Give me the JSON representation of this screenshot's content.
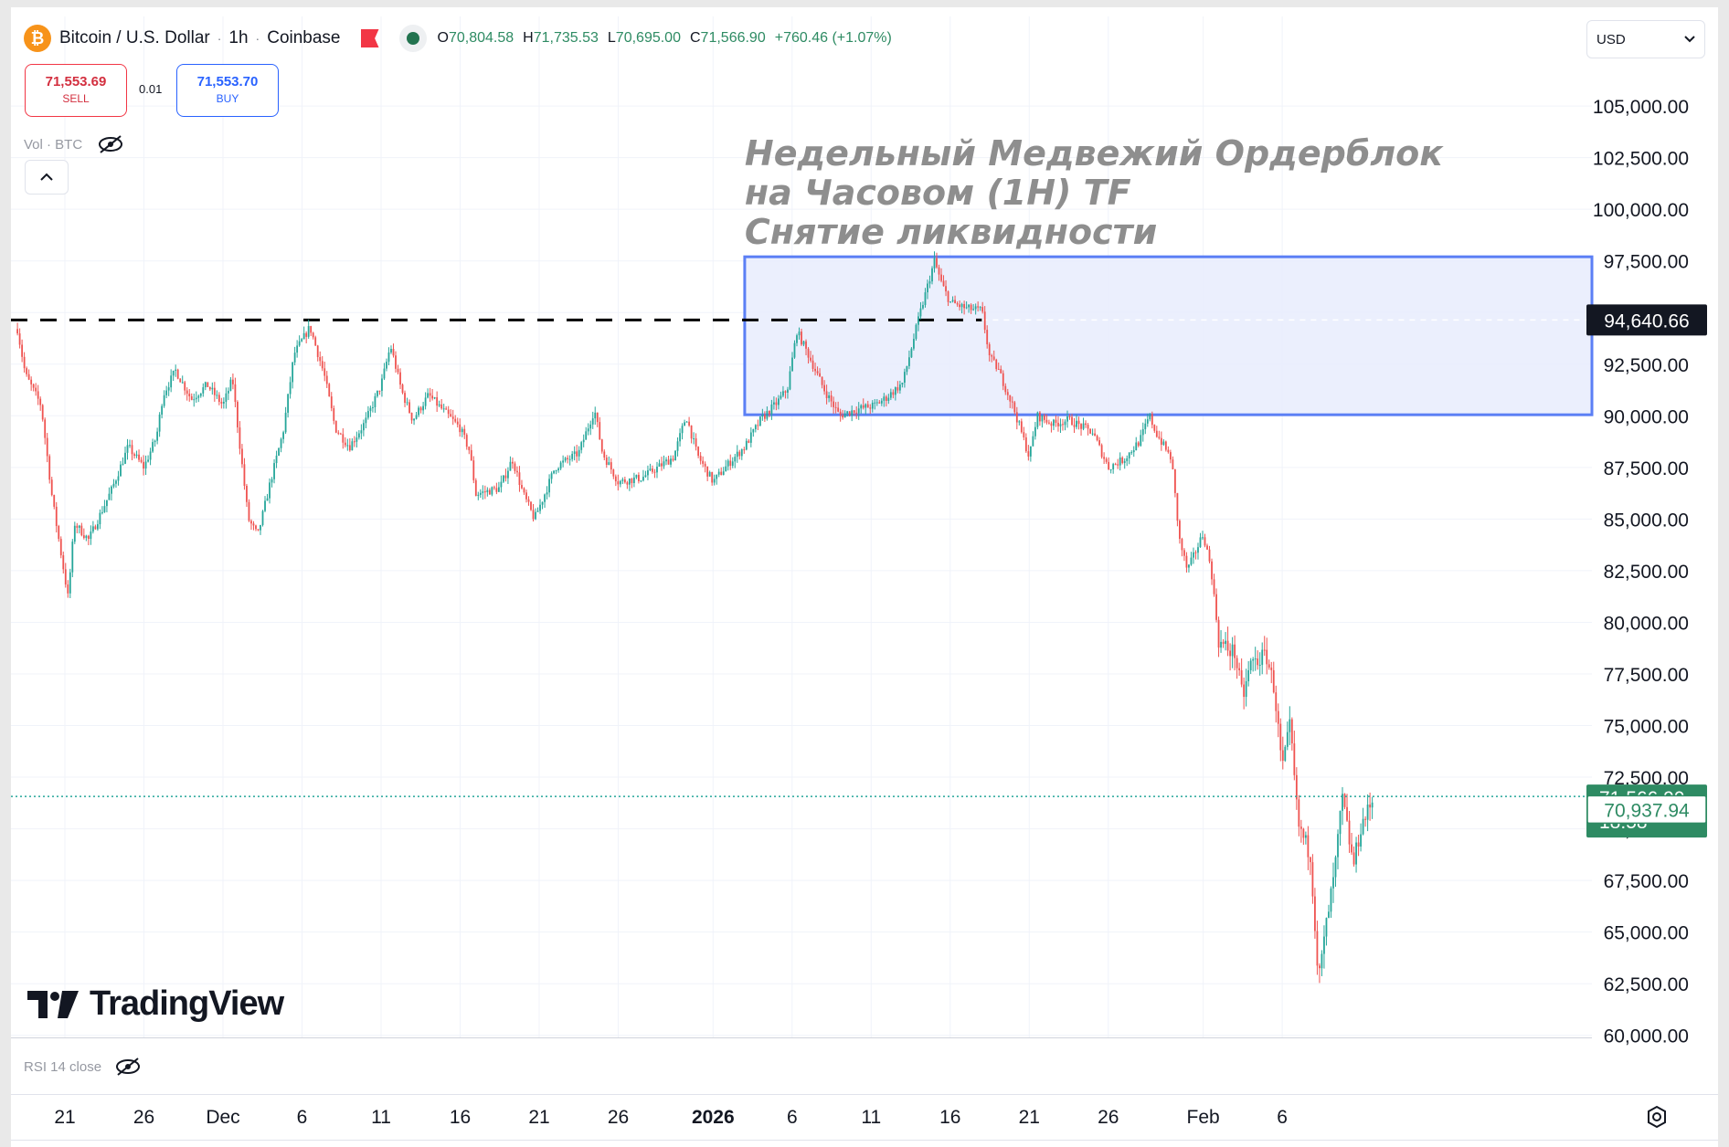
{
  "header": {
    "symbol": "Bitcoin / U.S. Dollar",
    "interval": "1h",
    "exchange": "Coinbase",
    "logo_glyph": "₿",
    "separator": "·",
    "open_label": "O",
    "open": "70,804.58",
    "high_label": "H",
    "high": "71,735.53",
    "low_label": "L",
    "low": "70,695.00",
    "close_label": "C",
    "close": "71,566.90",
    "change": "+760.46 (+1.07%)",
    "currency": "USD"
  },
  "trade": {
    "sell_price": "71,553.69",
    "sell_label": "SELL",
    "spread": "0.01",
    "buy_price": "71,553.70",
    "buy_label": "BUY"
  },
  "indicators": {
    "volume_label": "Vol · BTC",
    "rsi_label": "RSI  14  close"
  },
  "watermark": "TradingView",
  "colors": {
    "up": "#26a69a",
    "down": "#ef5350",
    "zone_fill": "#e8ecfd",
    "zone_border": "#5b7ff5",
    "accent_green": "#2e8b63"
  },
  "chart_data": {
    "type": "candlestick",
    "y_axis_ticks": [
      "105,000.00",
      "102,500.00",
      "100,000.00",
      "97,500.00",
      "95,000.00",
      "92,500.00",
      "90,000.00",
      "87,500.00",
      "85,000.00",
      "82,500.00",
      "80,000.00",
      "77,500.00",
      "75,000.00",
      "72,500.00",
      "70,000.00",
      "67,500.00",
      "65,000.00",
      "62,500.00",
      "60,000.00"
    ],
    "y_tick_values": [
      105000,
      102500,
      100000,
      97500,
      95000,
      92500,
      90000,
      87500,
      85000,
      82500,
      80000,
      77500,
      75000,
      72500,
      70000,
      67500,
      65000,
      62500,
      60000
    ],
    "ylim": [
      59900,
      105800
    ],
    "x_ticks": [
      {
        "label": "21",
        "bold": false,
        "day": 0
      },
      {
        "label": "26",
        "bold": false,
        "day": 5
      },
      {
        "label": "Dec",
        "bold": false,
        "day": 10
      },
      {
        "label": "6",
        "bold": false,
        "day": 15
      },
      {
        "label": "11",
        "bold": false,
        "day": 20
      },
      {
        "label": "16",
        "bold": false,
        "day": 25
      },
      {
        "label": "21",
        "bold": false,
        "day": 30
      },
      {
        "label": "26",
        "bold": false,
        "day": 35
      },
      {
        "label": "2026",
        "bold": true,
        "day": 41
      },
      {
        "label": "6",
        "bold": false,
        "day": 46
      },
      {
        "label": "11",
        "bold": false,
        "day": 51
      },
      {
        "label": "16",
        "bold": false,
        "day": 56
      },
      {
        "label": "21",
        "bold": false,
        "day": 61
      },
      {
        "label": "26",
        "bold": false,
        "day": 66
      },
      {
        "label": "Feb",
        "bold": false,
        "day": 72
      },
      {
        "label": "6",
        "bold": false,
        "day": 77
      }
    ],
    "price_path": [
      [
        -3,
        94200
      ],
      [
        -2.5,
        92000
      ],
      [
        -1.5,
        90500
      ],
      [
        -0.8,
        86000
      ],
      [
        0.2,
        81200
      ],
      [
        0.6,
        84800
      ],
      [
        1.5,
        84000
      ],
      [
        3,
        86500
      ],
      [
        4,
        88500
      ],
      [
        5,
        87500
      ],
      [
        5.8,
        89000
      ],
      [
        6.2,
        91000
      ],
      [
        7,
        92200
      ],
      [
        8,
        90800
      ],
      [
        9,
        91500
      ],
      [
        10,
        90500
      ],
      [
        10.6,
        91800
      ],
      [
        11,
        89000
      ],
      [
        11.6,
        85000
      ],
      [
        12.2,
        84200
      ],
      [
        13,
        86800
      ],
      [
        13.8,
        89200
      ],
      [
        14.5,
        93000
      ],
      [
        15.5,
        94300
      ],
      [
        16.4,
        92000
      ],
      [
        17.1,
        89400
      ],
      [
        18,
        88500
      ],
      [
        19,
        89700
      ],
      [
        20,
        91500
      ],
      [
        20.6,
        93400
      ],
      [
        21.3,
        91200
      ],
      [
        22,
        89800
      ],
      [
        23,
        91000
      ],
      [
        24,
        90200
      ],
      [
        25,
        89400
      ],
      [
        25.6,
        88300
      ],
      [
        26,
        86200
      ],
      [
        27.5,
        86500
      ],
      [
        28.3,
        87900
      ],
      [
        29,
        86200
      ],
      [
        29.7,
        85000
      ],
      [
        30.5,
        86500
      ],
      [
        31,
        87500
      ],
      [
        32.5,
        88200
      ],
      [
        33.5,
        90300
      ],
      [
        34,
        88200
      ],
      [
        35,
        86800
      ],
      [
        36.5,
        87000
      ],
      [
        37.5,
        87500
      ],
      [
        38.5,
        88000
      ],
      [
        39.3,
        90000
      ],
      [
        40,
        88100
      ],
      [
        41,
        86800
      ],
      [
        42,
        87700
      ],
      [
        43,
        88500
      ],
      [
        44,
        89800
      ],
      [
        45,
        90600
      ],
      [
        45.7,
        91300
      ],
      [
        46.3,
        94100
      ],
      [
        47,
        93000
      ],
      [
        48,
        91300
      ],
      [
        49,
        90000
      ],
      [
        50,
        90300
      ],
      [
        51.2,
        90500
      ],
      [
        52,
        90900
      ],
      [
        53,
        91600
      ],
      [
        54,
        94700
      ],
      [
        55,
        97500
      ],
      [
        55.5,
        96300
      ],
      [
        56,
        95500
      ],
      [
        57,
        95200
      ],
      [
        58,
        95100
      ],
      [
        58.5,
        92800
      ],
      [
        59,
        92300
      ],
      [
        60,
        90400
      ],
      [
        61,
        88000
      ],
      [
        61.5,
        90000
      ],
      [
        62.5,
        89600
      ],
      [
        63.5,
        89800
      ],
      [
        65,
        89200
      ],
      [
        66,
        87500
      ],
      [
        67,
        87900
      ],
      [
        68,
        88800
      ],
      [
        68.6,
        90000
      ],
      [
        69,
        89200
      ],
      [
        70,
        87900
      ],
      [
        70.5,
        84000
      ],
      [
        71,
        82500
      ],
      [
        72,
        84300
      ],
      [
        72.5,
        82600
      ],
      [
        73,
        79000
      ],
      [
        74,
        78500
      ],
      [
        74.5,
        76300
      ],
      [
        75,
        78000
      ],
      [
        76,
        78400
      ],
      [
        76.5,
        76800
      ],
      [
        77,
        72800
      ],
      [
        77.5,
        75000
      ],
      [
        78,
        70200
      ],
      [
        78.8,
        68700
      ],
      [
        79.3,
        62600
      ],
      [
        79.8,
        65400
      ],
      [
        80.3,
        67800
      ],
      [
        80.8,
        71500
      ],
      [
        81.5,
        68200
      ],
      [
        82,
        70200
      ],
      [
        82.4,
        70800
      ],
      [
        82.8,
        71567
      ]
    ],
    "current_price": 71566.9,
    "current_label": "71,566.90",
    "countdown": "18:58",
    "secondary_price": 70937.94,
    "secondary_label": "70,937.94",
    "crosshair_price": 94640.66,
    "crosshair_label": "94,640.66",
    "liquidity_level": 94640.66,
    "liquidity_line_to_day": 58,
    "order_block": {
      "from_day": 43,
      "top": 97700,
      "bottom": 90050
    },
    "annotation": [
      "Недельный Медвежий Ордерблок",
      "на Часовом (1H) TF",
      "Снятие ликвидности"
    ]
  }
}
